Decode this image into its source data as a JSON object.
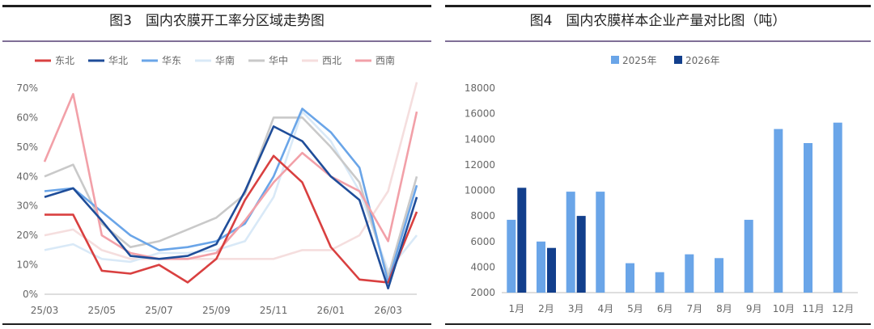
{
  "left_panel": {
    "title": "图3　国内农膜开工率分区域走势图"
  },
  "right_panel": {
    "title": "图4　国内农膜样本企业产量对比图（吨）"
  },
  "chart_data": [
    {
      "type": "line",
      "title": "图3　国内农膜开工率分区域走势图",
      "x": [
        "25/03",
        "25/04",
        "25/05",
        "25/06",
        "25/07",
        "25/08",
        "25/09",
        "25/10",
        "25/11",
        "25/12",
        "26/01",
        "26/02",
        "26/03",
        "26/04"
      ],
      "x_tick_labels": [
        "25/03",
        "25/05",
        "25/07",
        "25/09",
        "25/11",
        "26/01",
        "26/03"
      ],
      "y_tick_labels": [
        "0%",
        "10%",
        "20%",
        "30%",
        "40%",
        "50%",
        "60%",
        "70%"
      ],
      "ylim": [
        0,
        70
      ],
      "legend_position": "top",
      "series": [
        {
          "name": "东北",
          "color": "#d94040",
          "values": [
            27,
            27,
            8,
            7,
            10,
            4,
            12,
            32,
            47,
            38,
            16,
            5,
            4,
            28
          ]
        },
        {
          "name": "华北",
          "color": "#1f4d99",
          "values": [
            33,
            36,
            25,
            13,
            12,
            13,
            17,
            35,
            57,
            52,
            40,
            32,
            2,
            33
          ]
        },
        {
          "name": "华东",
          "color": "#6aa5e8",
          "values": [
            35,
            36,
            28,
            20,
            15,
            16,
            18,
            24,
            40,
            63,
            55,
            43,
            4,
            37
          ]
        },
        {
          "name": "华南",
          "color": "#d9e9f7",
          "values": [
            15,
            17,
            12,
            11,
            14,
            14,
            15,
            18,
            33,
            62,
            52,
            35,
            8,
            20
          ]
        },
        {
          "name": "华中",
          "color": "#c9c9c9",
          "values": [
            40,
            44,
            24,
            16,
            18,
            22,
            26,
            34,
            60,
            60,
            50,
            38,
            6,
            40
          ]
        },
        {
          "name": "西北",
          "color": "#f5dede",
          "values": [
            20,
            22,
            15,
            12,
            12,
            12,
            12,
            12,
            12,
            15,
            15,
            20,
            35,
            72
          ]
        },
        {
          "name": "西南",
          "color": "#f2a0a8",
          "values": [
            45,
            68,
            20,
            14,
            12,
            12,
            14,
            25,
            38,
            48,
            40,
            35,
            18,
            62
          ]
        }
      ]
    },
    {
      "type": "bar",
      "title": "图4　国内农膜样本企业产量对比图（吨）",
      "categories": [
        "1月",
        "2月",
        "3月",
        "4月",
        "5月",
        "6月",
        "7月",
        "8月",
        "9月",
        "10月",
        "11月",
        "12月"
      ],
      "y_tick_labels": [
        "2000",
        "4000",
        "6000",
        "8000",
        "10000",
        "12000",
        "14000",
        "16000",
        "18000"
      ],
      "ylim": [
        2000,
        18000
      ],
      "legend_position": "top",
      "series": [
        {
          "name": "2025年",
          "color": "#6aa5e8",
          "values": [
            7700,
            6000,
            9900,
            9900,
            4300,
            3600,
            5000,
            4700,
            7700,
            14800,
            13700,
            15300
          ]
        },
        {
          "name": "2026年",
          "color": "#123f8c",
          "values": [
            10200,
            5500,
            8000,
            null,
            null,
            null,
            null,
            null,
            null,
            null,
            null,
            null
          ]
        }
      ]
    }
  ]
}
